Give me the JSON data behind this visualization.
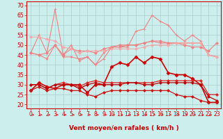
{
  "background_color": "#cceeed",
  "grid_color": "#aacccc",
  "xlabel": "Vent moyen/en rafales ( km/h )",
  "xlim": [
    -0.5,
    23.5
  ],
  "ylim": [
    18,
    72
  ],
  "yticks": [
    20,
    25,
    30,
    35,
    40,
    45,
    50,
    55,
    60,
    65,
    70
  ],
  "xticks": [
    0,
    1,
    2,
    3,
    4,
    5,
    6,
    7,
    8,
    9,
    10,
    11,
    12,
    13,
    14,
    15,
    16,
    17,
    18,
    19,
    20,
    21,
    22,
    23
  ],
  "series": [
    {
      "name": "line1_peak",
      "color": "#f08080",
      "linewidth": 0.8,
      "marker": "+",
      "markersize": 3,
      "data_x": [
        0,
        1,
        2,
        3,
        4,
        5,
        6,
        7,
        8,
        9,
        10,
        11,
        12,
        13,
        14,
        15,
        16,
        17,
        18,
        19,
        20,
        21,
        22,
        23
      ],
      "data_y": [
        46,
        55,
        46,
        68,
        45,
        50,
        42,
        44,
        40,
        43,
        49,
        49,
        49,
        57,
        58,
        65,
        62,
        60,
        55,
        52,
        55,
        52,
        45,
        44
      ]
    },
    {
      "name": "line2_flat_high",
      "color": "#f08080",
      "linewidth": 0.8,
      "marker": "D",
      "markersize": 2,
      "data_x": [
        0,
        1,
        2,
        3,
        4,
        5,
        6,
        7,
        8,
        9,
        10,
        11,
        12,
        13,
        14,
        15,
        16,
        17,
        18,
        19,
        20,
        21,
        22,
        23
      ],
      "data_y": [
        46,
        45,
        46,
        50,
        45,
        48,
        47,
        47,
        46,
        48,
        49,
        50,
        50,
        50,
        51,
        52,
        52,
        51,
        51,
        50,
        49,
        49,
        47,
        51
      ]
    },
    {
      "name": "line3_flat",
      "color": "#f08080",
      "linewidth": 0.8,
      "marker": "v",
      "markersize": 2,
      "data_x": [
        0,
        1,
        2,
        3,
        4,
        5,
        6,
        7,
        8,
        9,
        10,
        11,
        12,
        13,
        14,
        15,
        16,
        17,
        18,
        19,
        20,
        21,
        22,
        23
      ],
      "data_y": [
        46,
        45,
        43,
        50,
        44,
        44,
        43,
        44,
        40,
        46,
        49,
        49,
        50,
        50,
        51,
        52,
        51,
        51,
        51,
        51,
        51,
        51,
        45,
        44
      ]
    },
    {
      "name": "line4_slight_decline",
      "color": "#f4a8a8",
      "linewidth": 0.8,
      "marker": "D",
      "markersize": 2,
      "data_x": [
        0,
        1,
        2,
        3,
        4,
        5,
        6,
        7,
        8,
        9,
        10,
        11,
        12,
        13,
        14,
        15,
        16,
        17,
        18,
        19,
        20,
        21,
        22,
        23
      ],
      "data_y": [
        54,
        54,
        53,
        52,
        49,
        48,
        46,
        47,
        47,
        47,
        48,
        48,
        48,
        48,
        49,
        50,
        50,
        50,
        51,
        51,
        51,
        51,
        45,
        44
      ]
    },
    {
      "name": "line5_red_hump",
      "color": "#cc0000",
      "linewidth": 1.2,
      "marker": "D",
      "markersize": 2.5,
      "data_x": [
        0,
        1,
        2,
        3,
        4,
        5,
        6,
        7,
        8,
        9,
        10,
        11,
        12,
        13,
        14,
        15,
        16,
        17,
        18,
        19,
        20,
        21,
        22,
        23
      ],
      "data_y": [
        27,
        31,
        29,
        28,
        30,
        30,
        30,
        26,
        30,
        30,
        39,
        41,
        40,
        44,
        41,
        44,
        43,
        36,
        35,
        35,
        33,
        30,
        21,
        21
      ]
    },
    {
      "name": "line6_flat_red",
      "color": "#dd2222",
      "linewidth": 0.9,
      "marker": "D",
      "markersize": 2,
      "data_x": [
        0,
        1,
        2,
        3,
        4,
        5,
        6,
        7,
        8,
        9,
        10,
        11,
        12,
        13,
        14,
        15,
        16,
        17,
        18,
        19,
        20,
        21,
        22,
        23
      ],
      "data_y": [
        30,
        30,
        28,
        30,
        31,
        30,
        29,
        31,
        32,
        31,
        31,
        31,
        31,
        31,
        31,
        31,
        32,
        32,
        32,
        32,
        32,
        32,
        25,
        25
      ]
    },
    {
      "name": "line7_flat_red2",
      "color": "#bb0000",
      "linewidth": 0.9,
      "marker": "D",
      "markersize": 2,
      "data_x": [
        0,
        1,
        2,
        3,
        4,
        5,
        6,
        7,
        8,
        9,
        10,
        11,
        12,
        13,
        14,
        15,
        16,
        17,
        18,
        19,
        20,
        21,
        22,
        23
      ],
      "data_y": [
        30,
        30,
        28,
        30,
        30,
        30,
        28,
        30,
        31,
        30,
        30,
        30,
        31,
        31,
        30,
        30,
        31,
        31,
        31,
        31,
        31,
        30,
        24,
        22
      ]
    },
    {
      "name": "line8_declining_bottom",
      "color": "#cc1111",
      "linewidth": 0.9,
      "marker": "D",
      "markersize": 2,
      "data_x": [
        0,
        1,
        2,
        3,
        4,
        5,
        6,
        7,
        8,
        9,
        10,
        11,
        12,
        13,
        14,
        15,
        16,
        17,
        18,
        19,
        20,
        21,
        22,
        23
      ],
      "data_y": [
        27,
        29,
        27,
        28,
        28,
        27,
        27,
        25,
        24,
        26,
        27,
        27,
        27,
        27,
        27,
        27,
        27,
        27,
        25,
        24,
        24,
        22,
        21,
        21
      ]
    }
  ],
  "tick_fontsize": 5.5,
  "xlabel_fontsize": 6.5,
  "xlabel_color": "#cc0000",
  "tick_color": "#cc0000",
  "spine_color": "#cc0000"
}
